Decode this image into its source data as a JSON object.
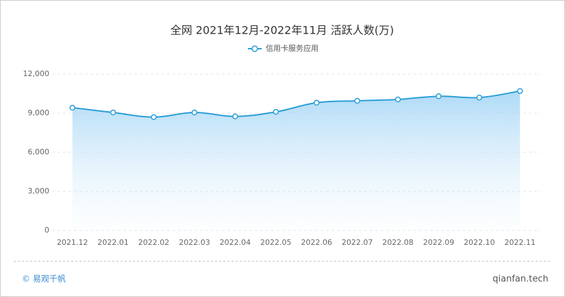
{
  "chart_data": {
    "type": "area-line",
    "title": "全网 2021年12月-2022年11月 活跃人数(万)",
    "categories": [
      "2021.12",
      "2022.01",
      "2022.02",
      "2022.03",
      "2022.04",
      "2022.05",
      "2022.06",
      "2022.07",
      "2022.08",
      "2022.09",
      "2022.10",
      "2022.11"
    ],
    "series": [
      {
        "name": "信用卡服务应用",
        "color": "#2a9fd6",
        "values": [
          9420,
          9050,
          8700,
          9050,
          8750,
          9100,
          9800,
          9950,
          10050,
          10300,
          10200,
          10700
        ]
      }
    ],
    "ylim": [
      0,
      12000
    ],
    "yticks": [
      0,
      {
        "value": 3000,
        "label": "3,000"
      },
      {
        "value": 6000,
        "label": "6,000"
      },
      {
        "value": 9000,
        "label": "9,000"
      },
      {
        "value": 12000,
        "label": "12,000"
      }
    ],
    "grid": true,
    "legend": "top"
  },
  "footer": {
    "brand": "© 易观千帆",
    "site": "qianfan.tech"
  }
}
